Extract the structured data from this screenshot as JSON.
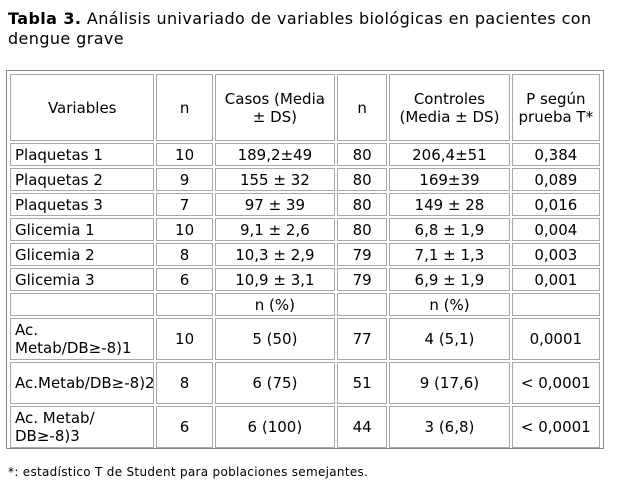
{
  "caption": {
    "label": "Tabla 3.",
    "text": " Análisis univariado de variables biológicas en pacientes con dengue grave"
  },
  "table": {
    "headers": {
      "variables": "Variables",
      "n1": "n",
      "casos": "Casos (Media ± DS)",
      "n2": "n",
      "controles": "Controles (Media ± DS)",
      "p": "P según prueba T*"
    },
    "rows": [
      {
        "variable": "Plaquetas 1",
        "n1": "10",
        "casos": "189,2±49",
        "n2": "80",
        "controles": "206,4±51",
        "p": "0,384"
      },
      {
        "variable": "Plaquetas 2",
        "n1": "9",
        "casos": "155 ± 32",
        "n2": "80",
        "controles": "169±39",
        "p": "0,089"
      },
      {
        "variable": "Plaquetas 3",
        "n1": "7",
        "casos": "97 ± 39",
        "n2": "80",
        "controles": "149 ± 28",
        "p": "0,016"
      },
      {
        "variable": "Glicemia 1",
        "n1": "10",
        "casos": "9,1 ± 2,6",
        "n2": "80",
        "controles": "6,8 ± 1,9",
        "p": "0,004"
      },
      {
        "variable": "Glicemia 2",
        "n1": "8",
        "casos": "10,3 ± 2,9",
        "n2": "79",
        "controles": "7,1 ± 1,3",
        "p": "0,003"
      },
      {
        "variable": "Glicemia 3",
        "n1": "6",
        "casos": "10,9 ± 3,1",
        "n2": "79",
        "controles": "6,9 ± 1,9",
        "p": "0,001"
      }
    ],
    "subheader": {
      "casos": "n (%)",
      "controles": "n (%)"
    },
    "rows2": [
      {
        "variable": "Ac. Metab/DB≥-8)1",
        "n1": "10",
        "casos": "5  (50)",
        "n2": "77",
        "controles": "4 (5,1)",
        "p": "0,0001"
      },
      {
        "variable": "Ac.Metab/DB≥-8)2",
        "n1": "8",
        "casos": "6  (75)",
        "n2": "51",
        "controles": "9 (17,6)",
        "p": "< 0,0001"
      },
      {
        "variable": "Ac. Metab/ DB≥-8)3",
        "n1": "6",
        "casos": "6  (100)",
        "n2": "44",
        "controles": "3 (6,8)",
        "p": "< 0,0001"
      }
    ]
  },
  "footnote": {
    "mark": "*",
    "text": ": estadístico T de Student para poblaciones semejantes."
  }
}
